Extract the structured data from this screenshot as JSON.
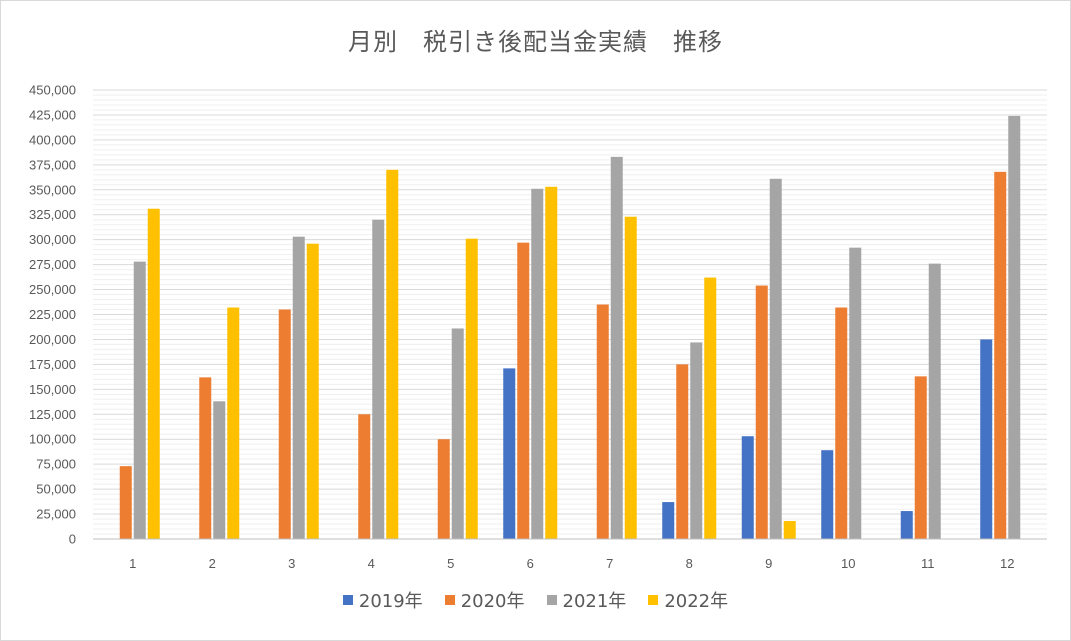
{
  "chart_data": {
    "type": "bar",
    "title": "月別　税引き後配当金実績　推移",
    "categories": [
      "1",
      "2",
      "3",
      "4",
      "5",
      "6",
      "7",
      "8",
      "9",
      "10",
      "11",
      "12"
    ],
    "series": [
      {
        "name": "2019年",
        "color": "#4472C4",
        "values": [
          0,
          0,
          0,
          0,
          0,
          171000,
          0,
          37000,
          103000,
          89000,
          28000,
          200000
        ]
      },
      {
        "name": "2020年",
        "color": "#ED7D31",
        "values": [
          73000,
          162000,
          230000,
          125000,
          100000,
          297000,
          235000,
          175000,
          254000,
          232000,
          163000,
          368000
        ]
      },
      {
        "name": "2021年",
        "color": "#A5A5A5",
        "values": [
          278000,
          138000,
          303000,
          320000,
          211000,
          351000,
          383000,
          197000,
          361000,
          292000,
          276000,
          424000
        ]
      },
      {
        "name": "2022年",
        "color": "#FFC000",
        "values": [
          331000,
          232000,
          296000,
          370000,
          301000,
          353000,
          323000,
          262000,
          18000,
          0,
          0,
          0
        ]
      }
    ],
    "ylim": [
      0,
      450000
    ],
    "ytick_labels": [
      "0",
      "25,000",
      "50,000",
      "75,000",
      "100,000",
      "125,000",
      "150,000",
      "175,000",
      "200,000",
      "225,000",
      "250,000",
      "275,000",
      "300,000",
      "325,000",
      "350,000",
      "375,000",
      "400,000",
      "425,000",
      "450,000"
    ],
    "xlabel": "",
    "ylabel": "",
    "grid": true,
    "legend_position": "bottom"
  }
}
